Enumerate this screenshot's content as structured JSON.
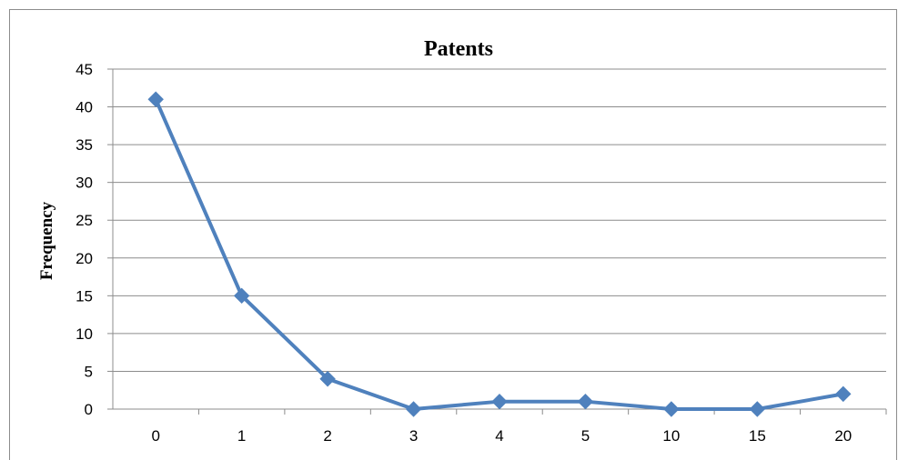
{
  "chart_data": {
    "type": "line",
    "title": "Patents",
    "xlabel": "",
    "ylabel": "Frequency",
    "categories": [
      "0",
      "1",
      "2",
      "3",
      "4",
      "5",
      "10",
      "15",
      "20"
    ],
    "series": [
      {
        "values": [
          41,
          15,
          4,
          0,
          1,
          1,
          0,
          0,
          2
        ]
      }
    ],
    "ylim": [
      0,
      45
    ],
    "yticks": [
      0,
      5,
      10,
      15,
      20,
      25,
      30,
      35,
      40,
      45
    ],
    "grid": true,
    "legend": "none",
    "marker": "diamond",
    "color": "#4f81bd"
  }
}
